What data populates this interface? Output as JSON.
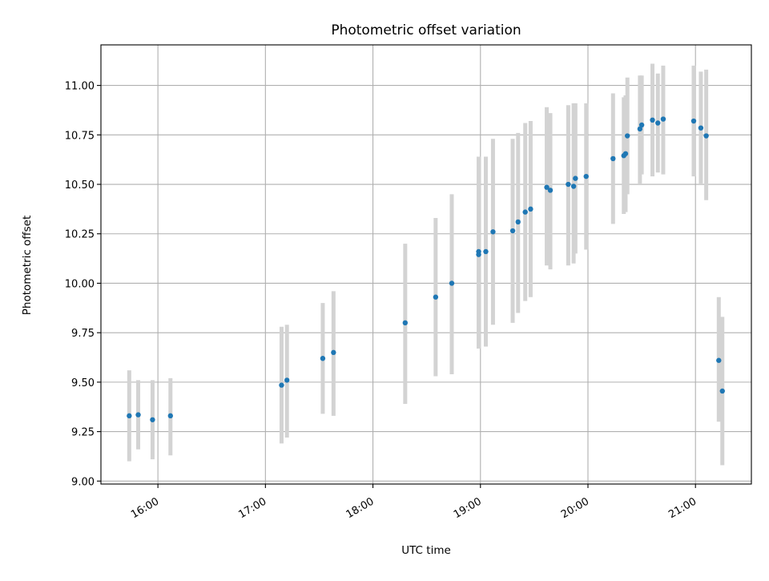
{
  "chart_data": {
    "type": "scatter",
    "title": "Photometric offset variation",
    "xlabel": "UTC time",
    "ylabel": "Photometric offset",
    "x_unit": "UTC hours",
    "xlim": [
      15.47,
      21.52
    ],
    "ylim": [
      8.985,
      11.205
    ],
    "grid": true,
    "x_ticks": [
      {
        "value": 16,
        "label": "16:00"
      },
      {
        "value": 17,
        "label": "17:00"
      },
      {
        "value": 18,
        "label": "18:00"
      },
      {
        "value": 19,
        "label": "19:00"
      },
      {
        "value": 20,
        "label": "20:00"
      },
      {
        "value": 21,
        "label": "21:00"
      }
    ],
    "y_ticks": [
      {
        "value": 9.0,
        "label": "9.00"
      },
      {
        "value": 9.25,
        "label": "9.25"
      },
      {
        "value": 9.5,
        "label": "9.50"
      },
      {
        "value": 9.75,
        "label": "9.75"
      },
      {
        "value": 10.0,
        "label": "10.00"
      },
      {
        "value": 10.25,
        "label": "10.25"
      },
      {
        "value": 10.5,
        "label": "10.50"
      },
      {
        "value": 10.75,
        "label": "10.75"
      },
      {
        "value": 11.0,
        "label": "11.00"
      }
    ],
    "colors": {
      "point": "#1f77b4",
      "error_bar": "#d3d3d3",
      "grid": "#b0b0b0"
    },
    "points": [
      {
        "x": "15:44",
        "y": 9.33,
        "low": 9.1,
        "high": 9.56
      },
      {
        "x": "15:49",
        "y": 9.335,
        "low": 9.16,
        "high": 9.51
      },
      {
        "x": "15:57",
        "y": 9.31,
        "low": 9.11,
        "high": 9.51
      },
      {
        "x": "16:07",
        "y": 9.33,
        "low": 9.13,
        "high": 9.52
      },
      {
        "x": "17:09",
        "y": 9.485,
        "low": 9.19,
        "high": 9.78
      },
      {
        "x": "17:12",
        "y": 9.51,
        "low": 9.22,
        "high": 9.79
      },
      {
        "x": "17:32",
        "y": 9.62,
        "low": 9.34,
        "high": 9.9
      },
      {
        "x": "17:38",
        "y": 9.65,
        "low": 9.33,
        "high": 9.96
      },
      {
        "x": "18:18",
        "y": 9.8,
        "low": 9.39,
        "high": 10.2
      },
      {
        "x": "18:35",
        "y": 9.93,
        "low": 9.53,
        "high": 10.33
      },
      {
        "x": "18:44",
        "y": 10.0,
        "low": 9.54,
        "high": 10.45
      },
      {
        "x": "18:59",
        "y": 10.16,
        "low": 9.67,
        "high": 10.64
      },
      {
        "x": "18:59",
        "y": 10.145,
        "low": 9.67,
        "high": 10.64
      },
      {
        "x": "19:03",
        "y": 10.16,
        "low": 9.68,
        "high": 10.64
      },
      {
        "x": "19:07",
        "y": 10.26,
        "low": 9.79,
        "high": 10.73
      },
      {
        "x": "19:18",
        "y": 10.265,
        "low": 9.8,
        "high": 10.73
      },
      {
        "x": "19:21",
        "y": 10.31,
        "low": 9.85,
        "high": 10.76
      },
      {
        "x": "19:25",
        "y": 10.36,
        "low": 9.91,
        "high": 10.81
      },
      {
        "x": "19:28",
        "y": 10.375,
        "low": 9.93,
        "high": 10.82
      },
      {
        "x": "19:37",
        "y": 10.485,
        "low": 10.09,
        "high": 10.89
      },
      {
        "x": "19:39",
        "y": 10.47,
        "low": 10.07,
        "high": 10.86
      },
      {
        "x": "19:49",
        "y": 10.5,
        "low": 10.09,
        "high": 10.9
      },
      {
        "x": "19:52",
        "y": 10.49,
        "low": 10.1,
        "high": 10.91
      },
      {
        "x": "19:53",
        "y": 10.53,
        "low": 10.15,
        "high": 10.91
      },
      {
        "x": "19:59",
        "y": 10.54,
        "low": 10.17,
        "high": 10.91
      },
      {
        "x": "20:14",
        "y": 10.63,
        "low": 10.3,
        "high": 10.96
      },
      {
        "x": "20:20",
        "y": 10.645,
        "low": 10.35,
        "high": 10.94
      },
      {
        "x": "20:21",
        "y": 10.655,
        "low": 10.36,
        "high": 10.95
      },
      {
        "x": "20:22",
        "y": 10.745,
        "low": 10.45,
        "high": 11.04
      },
      {
        "x": "20:29",
        "y": 10.78,
        "low": 10.5,
        "high": 11.05
      },
      {
        "x": "20:30",
        "y": 10.8,
        "low": 10.55,
        "high": 11.05
      },
      {
        "x": "20:36",
        "y": 10.825,
        "low": 10.54,
        "high": 11.11
      },
      {
        "x": "20:39",
        "y": 10.81,
        "low": 10.56,
        "high": 11.06
      },
      {
        "x": "20:42",
        "y": 10.83,
        "low": 10.55,
        "high": 11.1
      },
      {
        "x": "20:59",
        "y": 10.82,
        "low": 10.54,
        "high": 11.1
      },
      {
        "x": "21:03",
        "y": 10.785,
        "low": 10.5,
        "high": 11.07
      },
      {
        "x": "21:06",
        "y": 10.745,
        "low": 10.42,
        "high": 11.08
      },
      {
        "x": "21:13",
        "y": 9.61,
        "low": 9.3,
        "high": 9.93
      },
      {
        "x": "21:15",
        "y": 9.455,
        "low": 9.08,
        "high": 9.83
      }
    ]
  }
}
